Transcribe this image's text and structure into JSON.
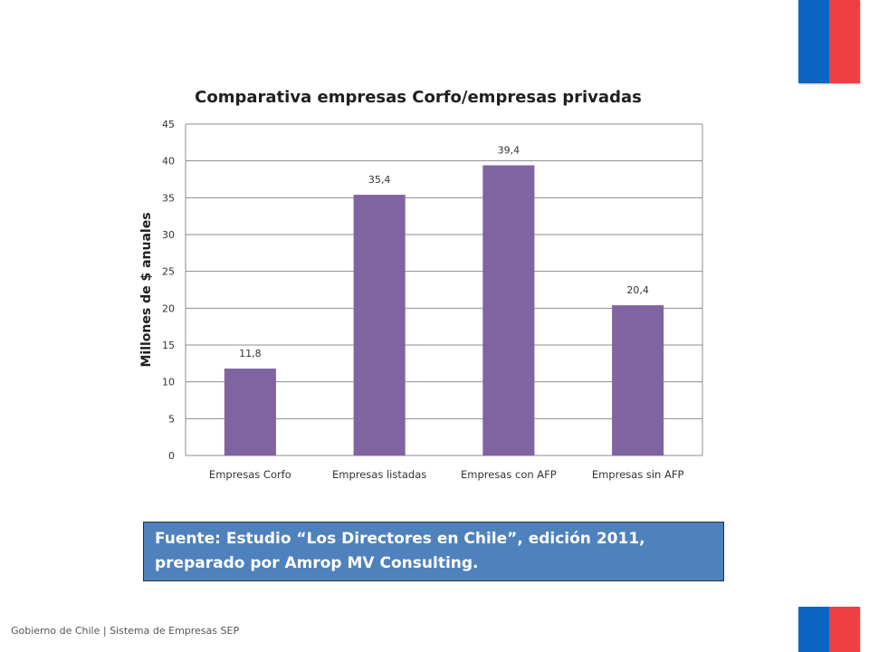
{
  "chart_data": {
    "type": "bar",
    "title": "Comparativa empresas Corfo/empresas privadas",
    "ylabel": "Millones de $ anuales",
    "xlabel": "",
    "categories": [
      "Empresas Corfo",
      "Empresas listadas",
      "Empresas con AFP",
      "Empresas sin AFP"
    ],
    "values": [
      11.8,
      35.4,
      39.4,
      20.4
    ],
    "data_labels": [
      "11,8",
      "35,4",
      "39,4",
      "20,4"
    ],
    "ylim": [
      0,
      45
    ],
    "yticks": [
      0,
      5,
      10,
      15,
      20,
      25,
      30,
      35,
      40,
      45
    ],
    "grid": true,
    "legend": "none",
    "bar_color": "#8064a2"
  },
  "source_note": "Fuente: Estudio “Los Directores en Chile”, edición 2011, preparado por Amrop MV Consulting.",
  "footer": "Gobierno de Chile | Sistema de Empresas SEP",
  "colors": {
    "flag_blue": "#0b66c3",
    "flag_red": "#ef3e42",
    "source_box": "#4f81bd"
  }
}
